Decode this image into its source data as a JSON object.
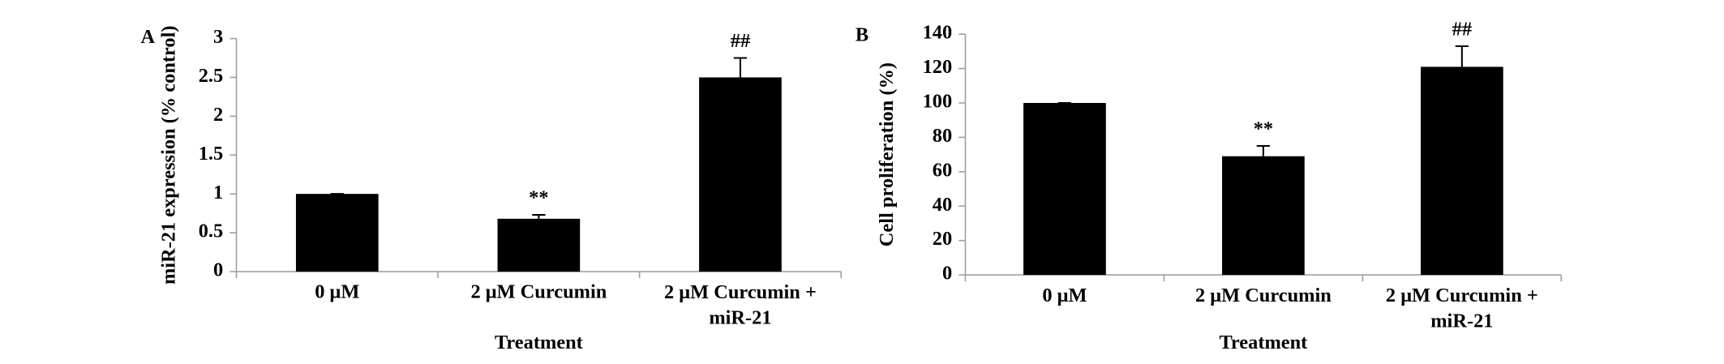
{
  "chart_data": [
    {
      "type": "bar",
      "panel_label": "A",
      "y_label": "miR-21 expression (% control)",
      "x_label": "Treatment",
      "categories": [
        "0 μM",
        "2 μM Curcumin",
        "2 μM Curcumin + miR-21"
      ],
      "values": [
        1,
        0.68,
        2.5
      ],
      "errors": [
        0,
        0.05,
        0.25
      ],
      "annotations": [
        null,
        "**",
        "##"
      ],
      "color": "#000000",
      "ylim": [
        0,
        3
      ],
      "yticks": [
        0,
        0.5,
        1,
        1.5,
        2,
        2.5,
        3
      ]
    },
    {
      "type": "bar",
      "panel_label": "B",
      "y_label": "Cell proliferation (%)",
      "x_label": "Treatment",
      "categories": [
        "0 μM",
        "2 μM Curcumin",
        "2 μM Curcumin + miR-21"
      ],
      "values": [
        100,
        69,
        121
      ],
      "errors": [
        0,
        6,
        12
      ],
      "annotations": [
        null,
        "**",
        "##"
      ],
      "color": "#000000",
      "ylim": [
        0,
        140
      ],
      "yticks": [
        0,
        20,
        40,
        60,
        80,
        100,
        120,
        140
      ]
    }
  ]
}
